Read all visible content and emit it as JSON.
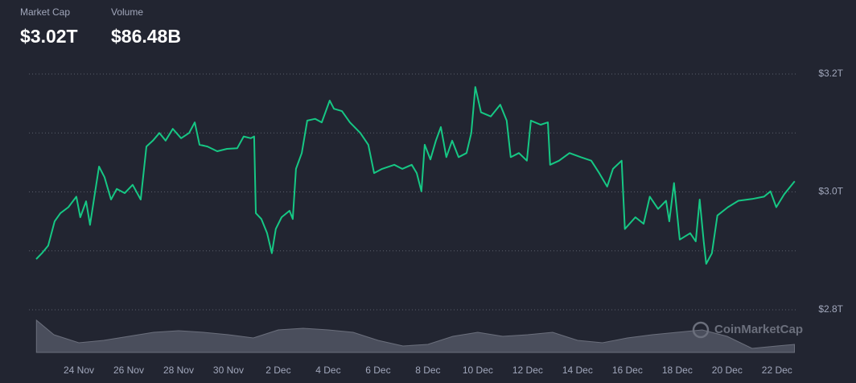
{
  "header": {
    "market_cap_label": "Market Cap",
    "market_cap": "$3.02T",
    "volume_label": "Volume",
    "volume": "$86.48B"
  },
  "chart_data": {
    "type": "line",
    "color": "#16c784",
    "x": [
      0.29,
      0.52,
      0.77,
      1.03,
      1.26,
      1.58,
      1.9,
      2.06,
      2.29,
      2.45,
      2.65,
      2.81,
      3.03,
      3.29,
      3.52,
      3.84,
      4.16,
      4.48,
      4.71,
      4.97,
      5.23,
      5.48,
      5.77,
      6.1,
      6.42,
      6.65,
      6.84,
      7.16,
      7.55,
      7.94,
      8.35,
      8.61,
      8.9,
      9.03,
      9.1,
      9.32,
      9.55,
      9.74,
      9.9,
      10.13,
      10.45,
      10.58,
      10.71,
      10.94,
      11.16,
      11.48,
      11.74,
      12.06,
      12.23,
      12.55,
      12.87,
      13.29,
      13.61,
      13.84,
      14.16,
      14.65,
      14.97,
      15.35,
      15.55,
      15.74,
      15.87,
      16.1,
      16.32,
      16.52,
      16.74,
      16.97,
      17.23,
      17.55,
      17.74,
      17.9,
      18.13,
      18.52,
      18.9,
      19.16,
      19.32,
      19.65,
      19.97,
      20.13,
      20.52,
      20.81,
      20.9,
      21.26,
      21.68,
      22.13,
      22.55,
      22.87,
      23.19,
      23.42,
      23.77,
      23.9,
      24.32,
      24.65,
      24.9,
      25.23,
      25.55,
      25.68,
      25.87,
      26.1,
      26.52,
      26.74,
      26.9,
      27.06,
      27.16,
      27.39,
      27.61,
      28.03,
      28.45,
      29,
      29.48,
      29.74,
      29.97,
      30.29,
      30.71
    ],
    "values": [
      2.886,
      2.896,
      2.909,
      2.95,
      2.964,
      2.974,
      2.992,
      2.957,
      2.984,
      2.944,
      2.999,
      3.043,
      3.025,
      2.987,
      3.005,
      2.998,
      3.012,
      2.987,
      3.077,
      3.087,
      3.1,
      3.087,
      3.107,
      3.091,
      3.1,
      3.118,
      3.08,
      3.077,
      3.069,
      3.073,
      3.074,
      3.094,
      3.091,
      3.094,
      2.964,
      2.954,
      2.93,
      2.896,
      2.937,
      2.957,
      2.968,
      2.954,
      3.039,
      3.066,
      3.121,
      3.124,
      3.118,
      3.155,
      3.141,
      3.137,
      3.118,
      3.1,
      3.08,
      3.032,
      3.039,
      3.046,
      3.039,
      3.046,
      3.032,
      3.001,
      3.08,
      3.055,
      3.087,
      3.11,
      3.059,
      3.087,
      3.059,
      3.066,
      3.1,
      3.178,
      3.135,
      3.128,
      3.148,
      3.121,
      3.059,
      3.066,
      3.053,
      3.121,
      3.114,
      3.118,
      3.046,
      3.053,
      3.066,
      3.059,
      3.053,
      3.032,
      3.009,
      3.039,
      3.053,
      2.937,
      2.957,
      2.946,
      2.992,
      2.971,
      2.985,
      2.95,
      3.015,
      2.919,
      2.93,
      2.916,
      2.987,
      2.916,
      2.878,
      2.896,
      2.96,
      2.974,
      2.985,
      2.988,
      2.992,
      3.001,
      2.974,
      2.996,
      3.018
    ],
    "xlim": [
      0,
      31.2
    ],
    "xticks": [
      {
        "value": 2,
        "label": "24 Nov"
      },
      {
        "value": 4,
        "label": "26 Nov"
      },
      {
        "value": 6,
        "label": "28 Nov"
      },
      {
        "value": 8,
        "label": "30 Nov"
      },
      {
        "value": 10,
        "label": "2 Dec"
      },
      {
        "value": 12,
        "label": "4 Dec"
      },
      {
        "value": 14,
        "label": "6 Dec"
      },
      {
        "value": 16,
        "label": "8 Dec"
      },
      {
        "value": 18,
        "label": "10 Dec"
      },
      {
        "value": 20,
        "label": "12 Dec"
      },
      {
        "value": 22,
        "label": "14 Dec"
      },
      {
        "value": 24,
        "label": "16 Dec"
      },
      {
        "value": 26,
        "label": "18 Dec"
      },
      {
        "value": 28,
        "label": "20 Dec"
      },
      {
        "value": 30,
        "label": "22 Dec"
      }
    ],
    "ylim": [
      2.8,
      3.2
    ],
    "yticks": [
      {
        "value": 2.8,
        "label": "$2.8T"
      },
      {
        "value": 2.9,
        "label": null
      },
      {
        "value": 3.0,
        "label": "$3.0T"
      },
      {
        "value": 3.1,
        "label": null
      },
      {
        "value": 3.2,
        "label": "$3.2T"
      }
    ],
    "grid": true,
    "volume": {
      "color": "#4a4e5c",
      "ylim": [
        0,
        40
      ],
      "x": [
        0.3,
        1,
        2,
        3,
        4,
        5,
        6,
        7,
        8,
        9,
        10,
        11,
        12,
        13,
        14,
        15,
        16,
        17,
        18,
        19,
        20,
        21,
        22,
        23,
        24,
        25,
        26,
        27,
        28,
        29,
        30,
        30.7
      ],
      "values": [
        40,
        22,
        12,
        15,
        20,
        25,
        27,
        25,
        22,
        18,
        28,
        30,
        28,
        25,
        15,
        8,
        10,
        20,
        25,
        20,
        22,
        25,
        15,
        12,
        18,
        22,
        25,
        28,
        20,
        5,
        8,
        10
      ]
    },
    "watermark": "CoinMarketCap"
  }
}
